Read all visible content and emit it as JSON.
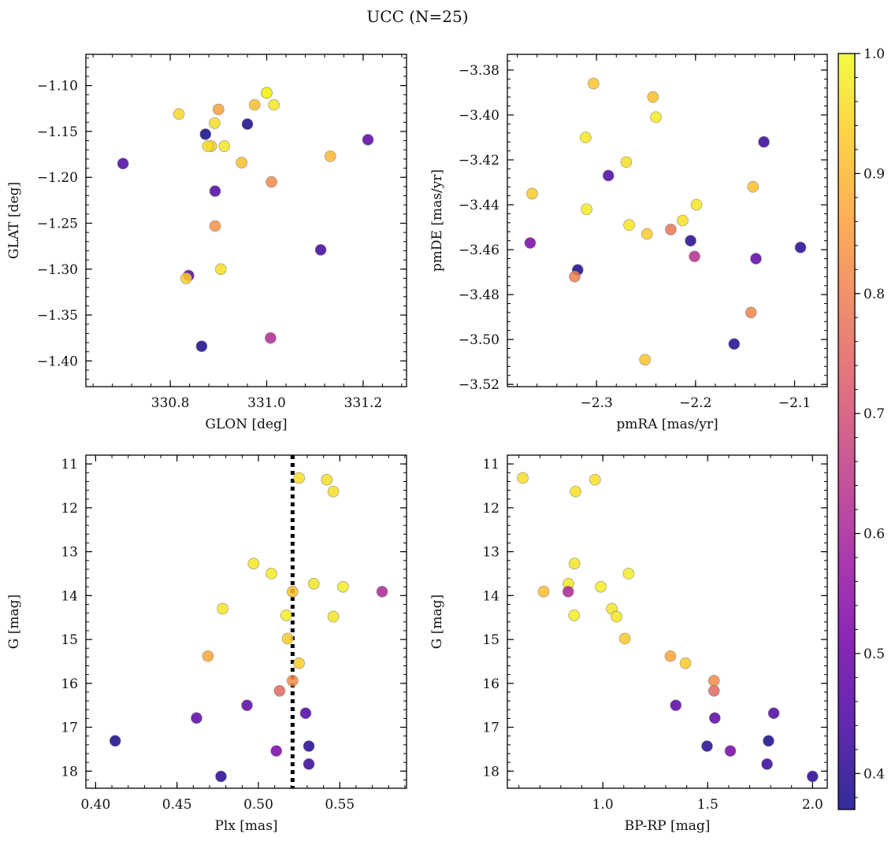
{
  "figure": {
    "title": "UCC (N=25)"
  },
  "colormap": {
    "name": "plasma",
    "range": [
      0.37,
      1.0
    ],
    "stops": [
      "#0d0887",
      "#46039f",
      "#7201a8",
      "#9c179e",
      "#bd3786",
      "#d8576b",
      "#ed7953",
      "#fb9f3a",
      "#fdca26",
      "#f0f921"
    ],
    "ticks": [
      0.4,
      0.5,
      0.6,
      0.7,
      0.8,
      0.9,
      1.0
    ],
    "tick_labels": [
      "0.4",
      "0.5",
      "0.6",
      "0.7",
      "0.8",
      "0.9",
      "1.0"
    ]
  },
  "chart_data": [
    {
      "type": "scatter",
      "name": "glon-glat",
      "xlabel": "GLON [deg]",
      "ylabel": "GLAT [deg]",
      "xlim": [
        330.625,
        331.29
      ],
      "ylim": [
        -1.428,
        -1.066
      ],
      "y_inverted": false,
      "xticks": [
        330.8,
        331.0,
        331.2
      ],
      "xtick_labels": [
        "330.8",
        "331.0",
        "331.2"
      ],
      "yticks": [
        -1.4,
        -1.35,
        -1.3,
        -1.25,
        -1.2,
        -1.15,
        -1.1
      ],
      "ytick_labels": [
        "−1.40",
        "−1.35",
        "−1.30",
        "−1.25",
        "−1.20",
        "−1.15",
        "−1.10"
      ],
      "x": [
        331.0,
        331.015,
        330.9,
        330.975,
        330.818,
        330.96,
        330.873,
        330.892,
        330.885,
        330.878,
        330.912,
        330.948,
        331.21,
        330.702,
        331.132,
        331.01,
        330.893,
        330.893,
        331.112,
        330.838,
        330.905,
        330.833,
        331.008,
        330.865,
        331.0
      ],
      "y": [
        -1.108,
        -1.121,
        -1.126,
        -1.121,
        -1.131,
        -1.142,
        -1.153,
        -1.141,
        -1.166,
        -1.166,
        -1.166,
        -1.184,
        -1.159,
        -1.185,
        -1.177,
        -1.205,
        -1.215,
        -1.253,
        -1.279,
        -1.307,
        -1.3,
        -1.31,
        -1.375,
        -1.384,
        -1.108
      ],
      "c": [
        0.99,
        0.97,
        0.86,
        0.91,
        0.95,
        0.38,
        0.37,
        0.96,
        0.93,
        0.96,
        0.97,
        0.91,
        0.47,
        0.45,
        0.9,
        0.82,
        0.45,
        0.83,
        0.43,
        0.47,
        0.96,
        0.94,
        0.62,
        0.38,
        0.99
      ]
    },
    {
      "type": "scatter",
      "name": "pmra-pmde",
      "xlabel": "pmRA [mas/yr]",
      "ylabel": "pmDE [mas/yr]",
      "xlim": [
        -2.39,
        -2.067
      ],
      "ylim": [
        -3.521,
        -3.373
      ],
      "y_inverted": false,
      "xticks": [
        -2.3,
        -2.2,
        -2.1
      ],
      "xtick_labels": [
        "−2.3",
        "−2.2",
        "−2.1"
      ],
      "yticks": [
        -3.52,
        -3.5,
        -3.48,
        -3.46,
        -3.44,
        -3.42,
        -3.4,
        -3.38
      ],
      "ytick_labels": [
        "−3.52",
        "−3.50",
        "−3.48",
        "−3.46",
        "−3.44",
        "−3.42",
        "−3.40",
        "−3.38"
      ],
      "x": [
        -2.303,
        -2.243,
        -2.24,
        -2.311,
        -2.27,
        -2.131,
        -2.288,
        -2.142,
        -2.365,
        -2.31,
        -2.199,
        -2.213,
        -2.267,
        -2.249,
        -2.225,
        -2.205,
        -2.367,
        -2.094,
        -2.201,
        -2.139,
        -2.319,
        -2.322,
        -2.144,
        -2.161,
        -2.251
      ],
      "y": [
        -3.386,
        -3.392,
        -3.401,
        -3.41,
        -3.421,
        -3.412,
        -3.427,
        -3.432,
        -3.435,
        -3.442,
        -3.44,
        -3.447,
        -3.449,
        -3.453,
        -3.451,
        -3.456,
        -3.457,
        -3.459,
        -3.463,
        -3.464,
        -3.469,
        -3.472,
        -3.488,
        -3.502,
        -3.509
      ],
      "c": [
        0.92,
        0.91,
        0.98,
        0.97,
        0.96,
        0.42,
        0.45,
        0.91,
        0.93,
        0.98,
        0.97,
        0.96,
        0.97,
        0.93,
        0.78,
        0.4,
        0.52,
        0.4,
        0.63,
        0.48,
        0.38,
        0.8,
        0.81,
        0.39,
        0.92
      ]
    },
    {
      "type": "scatter",
      "name": "plx-g",
      "xlabel": "Plx [mas]",
      "ylabel": "G [mag]",
      "xlim": [
        0.394,
        0.591
      ],
      "ylim": [
        18.39,
        10.8
      ],
      "y_inverted": true,
      "vline": 0.521,
      "xticks": [
        0.4,
        0.45,
        0.5,
        0.55
      ],
      "xtick_labels": [
        "0.40",
        "0.45",
        "0.50",
        "0.55"
      ],
      "yticks": [
        11,
        12,
        13,
        14,
        15,
        16,
        17,
        18
      ],
      "ytick_labels": [
        "11",
        "12",
        "13",
        "14",
        "15",
        "16",
        "17",
        "18"
      ],
      "x": [
        0.525,
        0.542,
        0.546,
        0.497,
        0.508,
        0.534,
        0.552,
        0.576,
        0.521,
        0.478,
        0.517,
        0.546,
        0.518,
        0.469,
        0.525,
        0.521,
        0.513,
        0.493,
        0.529,
        0.462,
        0.412,
        0.531,
        0.511,
        0.531,
        0.477
      ],
      "y": [
        11.32,
        11.36,
        11.63,
        13.27,
        13.5,
        13.73,
        13.8,
        13.91,
        13.91,
        14.3,
        14.45,
        14.48,
        14.98,
        15.38,
        15.54,
        15.94,
        16.17,
        16.5,
        16.68,
        16.79,
        17.31,
        17.43,
        17.54,
        17.84,
        18.12
      ],
      "c": [
        0.96,
        0.96,
        0.96,
        0.97,
        0.98,
        0.97,
        0.98,
        0.61,
        0.91,
        0.97,
        0.98,
        0.97,
        0.93,
        0.87,
        0.93,
        0.82,
        0.75,
        0.47,
        0.45,
        0.47,
        0.38,
        0.4,
        0.52,
        0.42,
        0.4
      ]
    },
    {
      "type": "scatter",
      "name": "bprp-g",
      "xlabel": "BP-RP [mag]",
      "ylabel": "G [mag]",
      "xlim": [
        0.545,
        2.07
      ],
      "ylim": [
        18.39,
        10.8
      ],
      "y_inverted": true,
      "xticks": [
        1.0,
        1.5,
        2.0
      ],
      "xtick_labels": [
        "1.0",
        "1.5",
        "2.0"
      ],
      "yticks": [
        11,
        12,
        13,
        14,
        15,
        16,
        17,
        18
      ],
      "ytick_labels": [
        "11",
        "12",
        "13",
        "14",
        "15",
        "16",
        "17",
        "18"
      ],
      "x": [
        0.618,
        0.963,
        0.87,
        0.865,
        1.123,
        0.836,
        0.99,
        0.718,
        0.835,
        1.043,
        0.863,
        1.065,
        1.105,
        1.322,
        1.394,
        1.53,
        1.53,
        1.348,
        1.815,
        1.534,
        1.79,
        1.497,
        1.608,
        1.783,
        2.0
      ],
      "y": [
        11.32,
        11.36,
        11.63,
        13.27,
        13.5,
        13.73,
        13.8,
        13.91,
        13.91,
        14.3,
        14.45,
        14.48,
        14.98,
        15.38,
        15.54,
        15.94,
        16.17,
        16.5,
        16.68,
        16.79,
        17.31,
        17.43,
        17.54,
        17.84,
        18.12
      ],
      "c": [
        0.96,
        0.96,
        0.96,
        0.97,
        0.98,
        0.97,
        0.98,
        0.91,
        0.61,
        0.97,
        0.98,
        0.97,
        0.93,
        0.87,
        0.93,
        0.82,
        0.75,
        0.47,
        0.45,
        0.47,
        0.38,
        0.4,
        0.52,
        0.42,
        0.4
      ]
    }
  ]
}
